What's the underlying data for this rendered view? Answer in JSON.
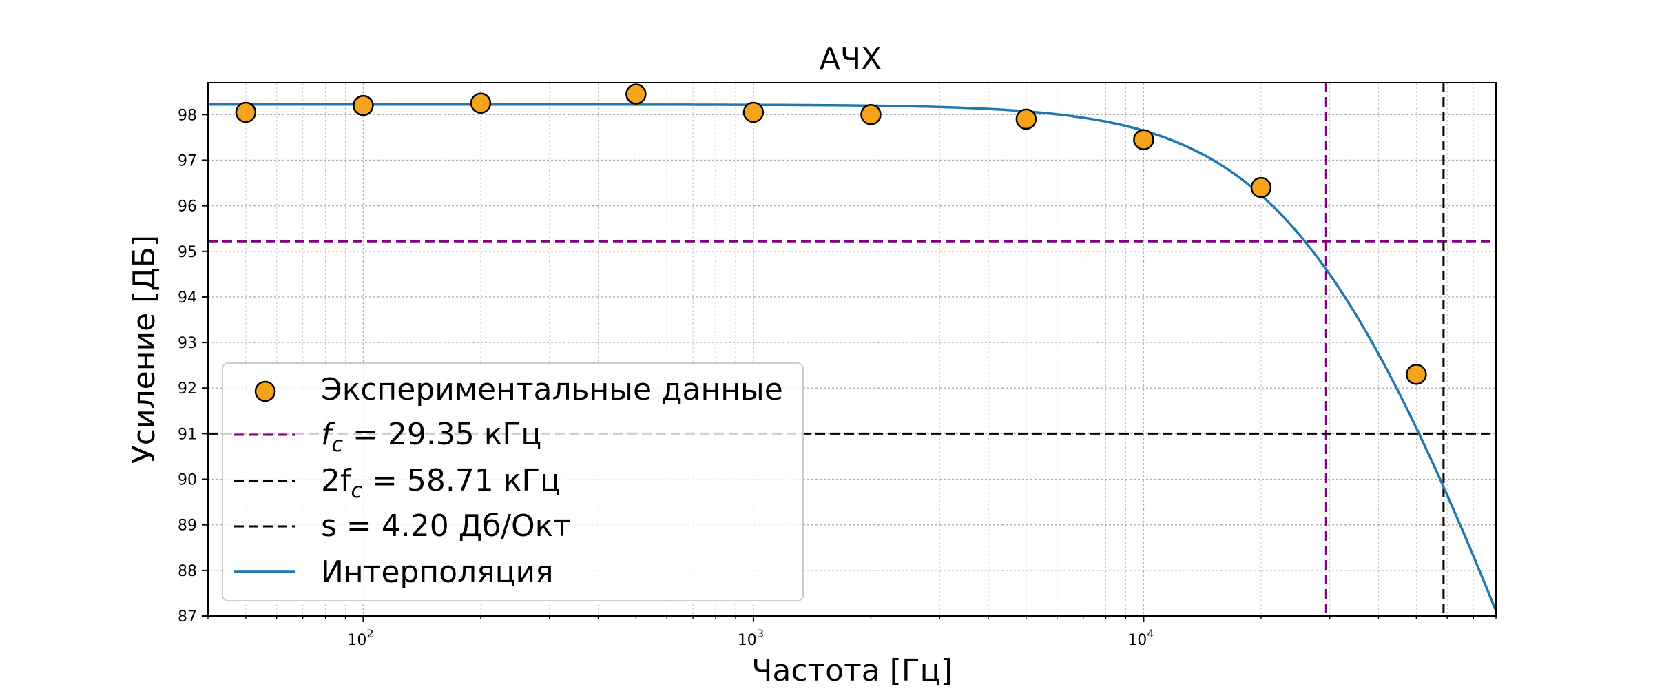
{
  "chart_data": {
    "type": "line",
    "title": "АЧХ",
    "xlabel": "Частота [Гц]",
    "ylabel": "Усиление [ДБ]",
    "x_scale": "log",
    "xlim": [
      40,
      80000
    ],
    "ylim": [
      87,
      98.7
    ],
    "y_ticks": [
      87,
      88,
      89,
      90,
      91,
      92,
      93,
      94,
      95,
      96,
      97,
      98
    ],
    "x_ticks": [
      {
        "base": "10",
        "exp": "2",
        "value": 100
      },
      {
        "base": "10",
        "exp": "3",
        "value": 1000
      },
      {
        "base": "10",
        "exp": "4",
        "value": 10000
      }
    ],
    "grid": true,
    "legend_position": "lower left",
    "series": [
      {
        "name": "Экспериментальные данные",
        "kind": "scatter",
        "color": "#f5a31a",
        "x": [
          50,
          100,
          200,
          500,
          1000,
          2000,
          5000,
          10000,
          20000,
          50000
        ],
        "y": [
          98.05,
          98.2,
          98.25,
          98.45,
          98.05,
          98.0,
          97.9,
          97.45,
          96.4,
          92.3
        ]
      },
      {
        "name_prefix": "f",
        "name_sub": "c",
        "name_rest": " = 29.35 кГц",
        "kind": "vline_hline",
        "color": "#800080",
        "x": 29350,
        "y": 95.22
      },
      {
        "name_prefix": "2f",
        "name_sub": "c",
        "name_rest": " = 58.71 кГц",
        "kind": "vline",
        "color": "#000000",
        "x": 58710
      },
      {
        "name": "s = 4.20 Дб/Окт",
        "kind": "hline",
        "color": "#000000",
        "y": 91.0
      },
      {
        "name": "Интерполяция",
        "kind": "line",
        "color": "#1f77b4",
        "model": {
          "gain_db": 98.22,
          "fc_hz": 29350,
          "order": 1.2
        }
      }
    ]
  }
}
